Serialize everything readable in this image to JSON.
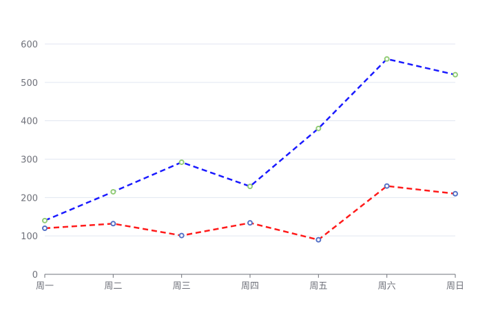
{
  "chart_data": {
    "type": "line",
    "categories": [
      "周一",
      "周二",
      "周三",
      "周四",
      "周五",
      "周六",
      "周日"
    ],
    "ylim": [
      0,
      600
    ],
    "yticks": [
      0,
      100,
      200,
      300,
      400,
      500,
      600
    ],
    "grid": true,
    "series": [
      {
        "values": [
          140,
          215,
          292,
          229,
          380,
          561,
          520
        ],
        "color": "#1a1aff",
        "marker_color": "#91cc75",
        "line_style": "dashed"
      },
      {
        "values": [
          120,
          132,
          101,
          134,
          90,
          230,
          210
        ],
        "color": "#ff1a1a",
        "marker_color": "#5470c6",
        "line_style": "dashed"
      }
    ]
  }
}
